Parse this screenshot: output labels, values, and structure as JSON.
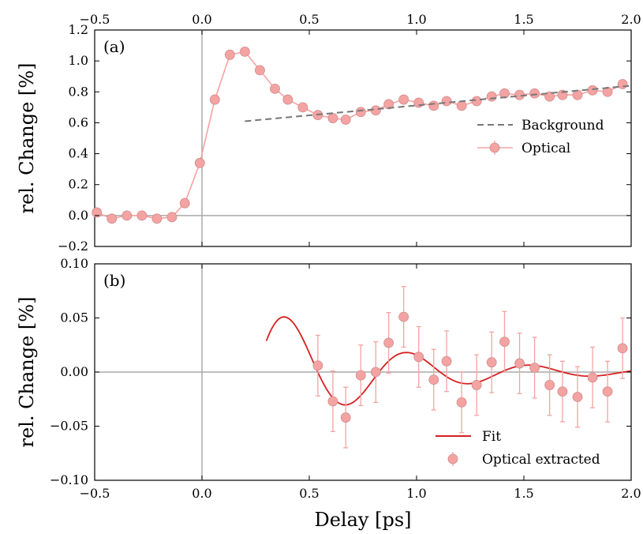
{
  "chart_data": [
    {
      "type": "line",
      "panel_label": "(a)",
      "ylabel": "rel. Change [%]",
      "xlim": [
        -0.5,
        2.0
      ],
      "ylim": [
        -0.2,
        1.2
      ],
      "xticks": [
        "−0.5",
        "0.0",
        "0.5",
        "1.0",
        "1.5",
        "2.0"
      ],
      "xtick_values": [
        -0.5,
        0.0,
        0.5,
        1.0,
        1.5,
        2.0
      ],
      "xticks_on_top": true,
      "yticks": [
        "−0.2",
        "0.0",
        "0.2",
        "0.4",
        "0.6",
        "0.8",
        "1.0",
        "1.2"
      ],
      "ytick_values": [
        -0.2,
        0.0,
        0.2,
        0.4,
        0.6,
        0.8,
        1.0,
        1.2
      ],
      "legend_position": "right",
      "series": [
        {
          "name": "Optical",
          "color": "#f4a3a3",
          "marker": "circle",
          "errorbars": true,
          "x": [
            -0.49,
            -0.42,
            -0.35,
            -0.28,
            -0.21,
            -0.14,
            -0.08,
            -0.01,
            0.06,
            0.13,
            0.2,
            0.27,
            0.34,
            0.4,
            0.47,
            0.54,
            0.61,
            0.67,
            0.74,
            0.81,
            0.87,
            0.94,
            1.01,
            1.08,
            1.14,
            1.21,
            1.28,
            1.35,
            1.41,
            1.48,
            1.55,
            1.62,
            1.68,
            1.75,
            1.82,
            1.89,
            1.96
          ],
          "y": [
            0.02,
            -0.02,
            0.0,
            0.0,
            -0.02,
            -0.01,
            0.08,
            0.34,
            0.75,
            1.04,
            1.06,
            0.94,
            0.82,
            0.75,
            0.7,
            0.65,
            0.63,
            0.62,
            0.67,
            0.68,
            0.72,
            0.75,
            0.73,
            0.71,
            0.74,
            0.71,
            0.74,
            0.77,
            0.79,
            0.78,
            0.79,
            0.77,
            0.78,
            0.78,
            0.81,
            0.8,
            0.85
          ]
        },
        {
          "name": "Background",
          "color": "#777777",
          "style": "dashed",
          "x": [
            0.2,
            2.0
          ],
          "y": [
            0.61,
            0.84
          ]
        }
      ],
      "hlines": [
        0.0
      ],
      "vlines": [
        0.0
      ]
    },
    {
      "type": "scatter",
      "panel_label": "(b)",
      "xlabel": "Delay [ps]",
      "ylabel": "rel. Change [%]",
      "xlim": [
        -0.5,
        2.0
      ],
      "ylim": [
        -0.1,
        0.1
      ],
      "xticks": [
        "−0.5",
        "0.0",
        "0.5",
        "1.0",
        "1.5",
        "2.0"
      ],
      "xtick_values": [
        -0.5,
        0.0,
        0.5,
        1.0,
        1.5,
        2.0
      ],
      "yticks": [
        "−0.10",
        "−0.05",
        "0.00",
        "0.05",
        "0.10"
      ],
      "ytick_values": [
        -0.1,
        -0.05,
        0.0,
        0.05,
        0.1
      ],
      "legend_position": "bottom-right",
      "series": [
        {
          "name": "Fit",
          "color": "#d62020",
          "type": "line",
          "fit": {
            "offset": 0.0,
            "amplitude": 0.06,
            "decay_ps": 0.55,
            "period_ps": 0.57,
            "t0_ps": 0.3,
            "t_start": 0.3,
            "t_end": 2.0,
            "phase": 0.5
          }
        },
        {
          "name": "Optical extracted",
          "color": "#f4a3a3",
          "marker": "circle",
          "errorbars": true,
          "error": 0.028,
          "x": [
            0.54,
            0.61,
            0.67,
            0.74,
            0.81,
            0.87,
            0.94,
            1.01,
            1.08,
            1.14,
            1.21,
            1.28,
            1.35,
            1.41,
            1.48,
            1.55,
            1.62,
            1.68,
            1.75,
            1.82,
            1.89,
            1.96
          ],
          "y": [
            0.006,
            -0.027,
            -0.042,
            -0.003,
            0.0,
            0.027,
            0.051,
            0.014,
            -0.007,
            0.01,
            -0.028,
            -0.012,
            0.009,
            0.028,
            0.008,
            0.004,
            -0.012,
            -0.018,
            -0.023,
            -0.005,
            -0.018,
            0.022
          ]
        }
      ],
      "hlines": [
        0.0
      ],
      "vlines": [
        0.0
      ]
    }
  ]
}
